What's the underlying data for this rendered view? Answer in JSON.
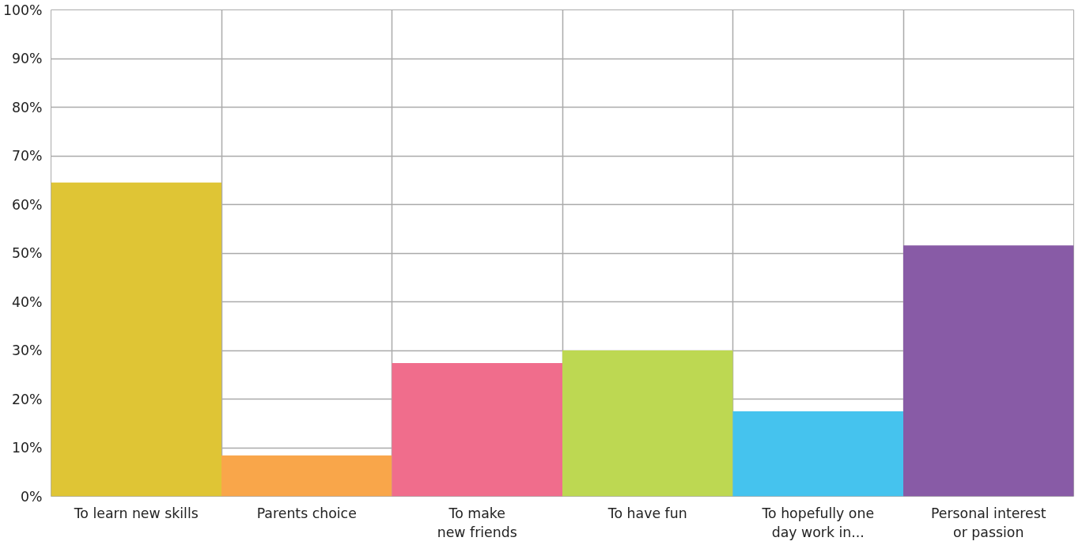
{
  "chart_data": {
    "type": "bar",
    "categories": [
      "To learn new skills",
      "Parents choice",
      "To make\nnew friends",
      "To have fun",
      "To hopefully one\nday work in...",
      "Personal interest\nor passion"
    ],
    "values": [
      64.5,
      8.4,
      27.4,
      30.0,
      17.5,
      51.6
    ],
    "colors": [
      "#dfc535",
      "#f9a64a",
      "#f06d8c",
      "#bdd852",
      "#45c3ee",
      "#885ba6"
    ],
    "ylim": [
      0,
      100
    ],
    "yticks": [
      {
        "value": 0,
        "label": "0%"
      },
      {
        "value": 10,
        "label": "10%"
      },
      {
        "value": 20,
        "label": "20%"
      },
      {
        "value": 30,
        "label": "30%"
      },
      {
        "value": 40,
        "label": "40%"
      },
      {
        "value": 50,
        "label": "50%"
      },
      {
        "value": 60,
        "label": "60%"
      },
      {
        "value": 70,
        "label": "70%"
      },
      {
        "value": 80,
        "label": "80%"
      },
      {
        "value": 90,
        "label": "90%"
      },
      {
        "value": 100,
        "label": "100%"
      }
    ],
    "grid": true
  }
}
